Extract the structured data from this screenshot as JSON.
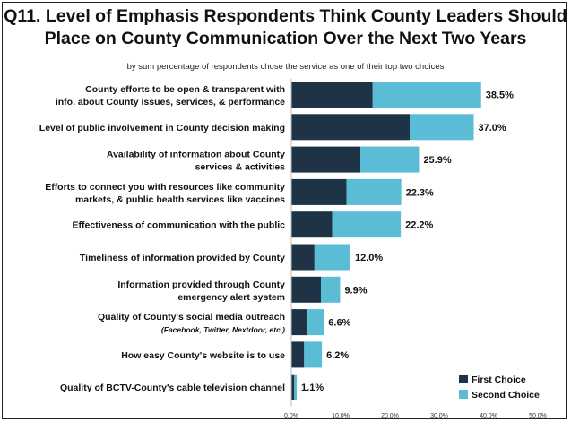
{
  "chart_data": {
    "type": "bar",
    "stacked": true,
    "orientation": "horizontal",
    "title_line1": "Q11. Level of Emphasis Respondents Think County Leaders Should",
    "title_line2": "Place on County Communication Over the Next Two Years",
    "subtitle": "by sum percentage of respondents chose the service as one of their top two choices",
    "categories": [
      [
        "County efforts to be open & transparent with",
        "info. about County issues, services, & performance"
      ],
      [
        "Level of public involvement in County decision making"
      ],
      [
        "Availability of information about County",
        "services & activities"
      ],
      [
        "Efforts to connect you with resources like community",
        "markets, & public health services like vaccines"
      ],
      [
        "Effectiveness of communication with the public"
      ],
      [
        "Timeliness of information provided by County"
      ],
      [
        "Information provided through County",
        "emergency alert system"
      ],
      [
        "Quality of County's social media outreach",
        "(Facebook, Twitter, Nextdoor, etc.)"
      ],
      [
        "How easy County's website is to use"
      ],
      [
        "Quality of BCTV-County's cable television channel"
      ]
    ],
    "series": [
      {
        "name": "First Choice",
        "color": "#1f3347",
        "values": [
          16.5,
          24.0,
          14.0,
          11.2,
          8.3,
          4.7,
          6.0,
          3.3,
          2.6,
          0.6
        ]
      },
      {
        "name": "Second Choice",
        "color": "#5bbcd6",
        "values": [
          22.0,
          13.0,
          11.9,
          11.1,
          13.9,
          7.3,
          3.9,
          3.3,
          3.6,
          0.5
        ]
      }
    ],
    "total_labels": [
      "38.5%",
      "37.0%",
      "25.9%",
      "22.3%",
      "22.2%",
      "12.0%",
      "9.9%",
      "6.6%",
      "6.2%",
      "1.1%"
    ],
    "xlim": [
      0,
      50
    ],
    "x_ticks": [
      "0.0%",
      "10.0%",
      "20.0%",
      "30.0%",
      "40.0%",
      "50.0%"
    ],
    "legend_position": "bottom-right"
  }
}
